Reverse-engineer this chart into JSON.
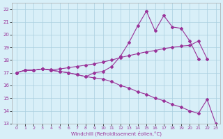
{
  "xlabel": "Windchill (Refroidissement éolien,°C)",
  "x": [
    0,
    1,
    2,
    3,
    4,
    5,
    6,
    7,
    8,
    9,
    10,
    11,
    12,
    13,
    14,
    15,
    16,
    17,
    18,
    19,
    20,
    21,
    22,
    23
  ],
  "line_jagged": [
    17.0,
    17.2,
    17.2,
    17.3,
    17.2,
    17.1,
    17.0,
    16.85,
    16.7,
    17.0,
    17.1,
    17.5,
    18.3,
    19.4,
    20.7,
    21.85,
    20.3,
    21.5,
    20.6,
    20.5,
    19.5,
    18.1,
    null,
    null
  ],
  "line_upper": [
    17.0,
    17.2,
    17.2,
    17.3,
    17.25,
    17.3,
    17.4,
    17.5,
    17.6,
    17.7,
    17.85,
    18.0,
    18.2,
    18.35,
    18.5,
    18.65,
    18.75,
    18.9,
    19.0,
    19.1,
    19.15,
    19.5,
    18.1,
    null
  ],
  "line_lower": [
    17.0,
    17.2,
    17.2,
    17.3,
    17.2,
    17.1,
    17.0,
    16.85,
    16.7,
    16.6,
    16.5,
    16.3,
    16.0,
    15.8,
    15.5,
    15.3,
    15.0,
    14.8,
    14.5,
    14.3,
    14.0,
    13.8,
    14.9,
    13.0
  ],
  "ylim": [
    13,
    22.5
  ],
  "xlim": [
    -0.5,
    23.5
  ],
  "yticks": [
    13,
    14,
    15,
    16,
    17,
    18,
    19,
    20,
    21,
    22
  ],
  "xticks": [
    0,
    1,
    2,
    3,
    4,
    5,
    6,
    7,
    8,
    9,
    10,
    11,
    12,
    13,
    14,
    15,
    16,
    17,
    18,
    19,
    20,
    21,
    22,
    23
  ],
  "line_color": "#993399",
  "bg_color": "#d8eff8",
  "grid_color": "#aacfdf"
}
